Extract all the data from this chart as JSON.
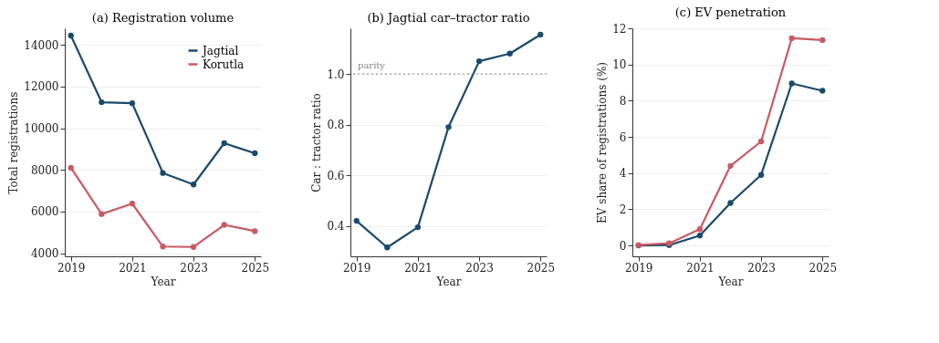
{
  "chart_data": [
    {
      "type": "line",
      "title": "(a) Registration volume",
      "xlabel": "Year",
      "ylabel": "Total registrations",
      "x": [
        2019,
        2020,
        2021,
        2022,
        2023,
        2024,
        2025
      ],
      "xlim": [
        2018.8,
        2025.2
      ],
      "xticks": [
        2019,
        2021,
        2023,
        2025
      ],
      "ylim": [
        3850,
        14800
      ],
      "yticks": [
        4000,
        6000,
        8000,
        10000,
        12000,
        14000
      ],
      "grid": "y",
      "legend": "top right",
      "marker": "circle",
      "line_style": "solid",
      "series": [
        {
          "name": "Jagtial",
          "color": "#1b4a6b",
          "values": [
            14450,
            11250,
            11200,
            7850,
            7300,
            9280,
            8800
          ]
        },
        {
          "name": "Korutla",
          "color": "#c85a64",
          "values": [
            8100,
            5880,
            6380,
            4320,
            4300,
            5360,
            5060
          ]
        }
      ]
    },
    {
      "type": "line",
      "title": "(b) Jagtial car–tractor ratio",
      "xlabel": "Year",
      "ylabel": "Car : tractor ratio",
      "x": [
        2019,
        2020,
        2021,
        2022,
        2023,
        2024,
        2025
      ],
      "xlim": [
        2018.8,
        2025.2
      ],
      "xticks": [
        2019,
        2021,
        2023,
        2025
      ],
      "ylim": [
        0.28,
        1.18
      ],
      "yticks": [
        0.4,
        0.6,
        0.8,
        {
          "value": 1.0,
          "label": "1.0"
        }
      ],
      "grid": "y",
      "marker": "circle",
      "line_style": "solid",
      "ref_lines": [
        {
          "axis": "y",
          "value": 1.0,
          "label": "parity",
          "color": "#888888",
          "line_style": "dotted"
        }
      ],
      "series": [
        {
          "color": "#1b4a6b",
          "values": [
            0.42,
            0.315,
            0.395,
            0.79,
            1.05,
            1.08,
            1.155
          ]
        }
      ]
    },
    {
      "type": "line",
      "title": "(c) EV penetration",
      "xlabel": "Year",
      "ylabel": "EV share of registrations (%)",
      "x": [
        2019,
        2020,
        2021,
        2022,
        2023,
        2024,
        2025
      ],
      "xlim": [
        2018.8,
        2025.2
      ],
      "xticks": [
        2019,
        2021,
        2023,
        2025
      ],
      "ylim": [
        -0.6,
        12
      ],
      "yticks": [
        0,
        2,
        4,
        6,
        8,
        10,
        12
      ],
      "grid": "y",
      "marker": "circle",
      "line_style": "solid",
      "series": [
        {
          "color": "#1b4a6b",
          "values": [
            0,
            0.02,
            0.55,
            2.35,
            3.9,
            8.95,
            8.55
          ]
        },
        {
          "color": "#c85a64",
          "values": [
            0.02,
            0.12,
            0.9,
            4.4,
            5.75,
            11.45,
            11.35
          ]
        }
      ]
    }
  ]
}
